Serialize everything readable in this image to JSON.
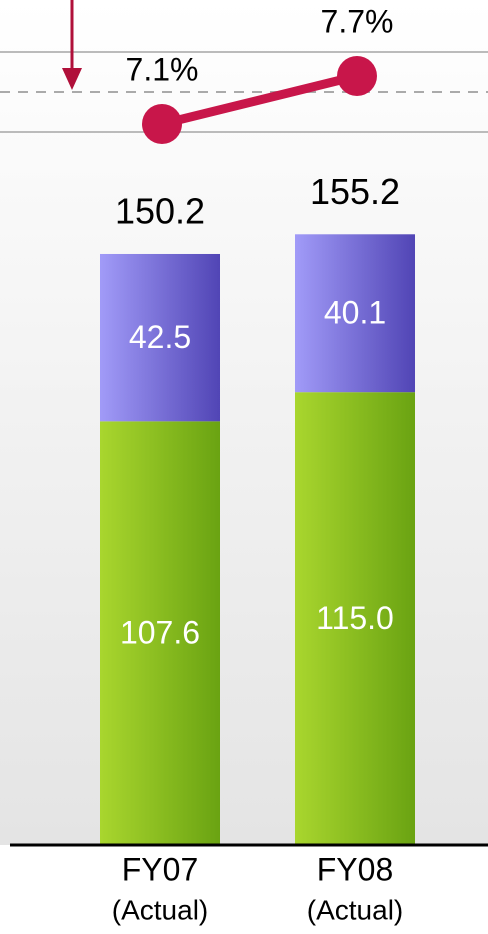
{
  "chart_data": {
    "type": "bar",
    "categories": [
      [
        "FY07",
        "(Actual)"
      ],
      [
        "FY08",
        "(Actual)"
      ]
    ],
    "ylim": [
      0,
      160
    ],
    "stacked": true,
    "series": [
      {
        "name": null,
        "gradient": [
          "#a9d62e",
          "#6aa312"
        ],
        "values": [
          107.6,
          115.0
        ],
        "value_labels": [
          "107.6",
          "115.0"
        ]
      },
      {
        "name": null,
        "gradient": [
          "#a19bf8",
          "#5145b5"
        ],
        "values": [
          42.5,
          40.1
        ]
      }
    ],
    "totals": [
      150.2,
      155.2
    ],
    "line": {
      "type": "line",
      "axis": "y2",
      "color": "#c8164a",
      "values": [
        7.1,
        7.7
      ],
      "value_labels": [
        "7.1%",
        "7.7%"
      ]
    },
    "y2lim": [
      7,
      8
    ],
    "y2ticks": [
      7,
      8
    ],
    "y2_dashed_line": 7.5,
    "grid": true,
    "arrow_color": "#b0103a"
  }
}
